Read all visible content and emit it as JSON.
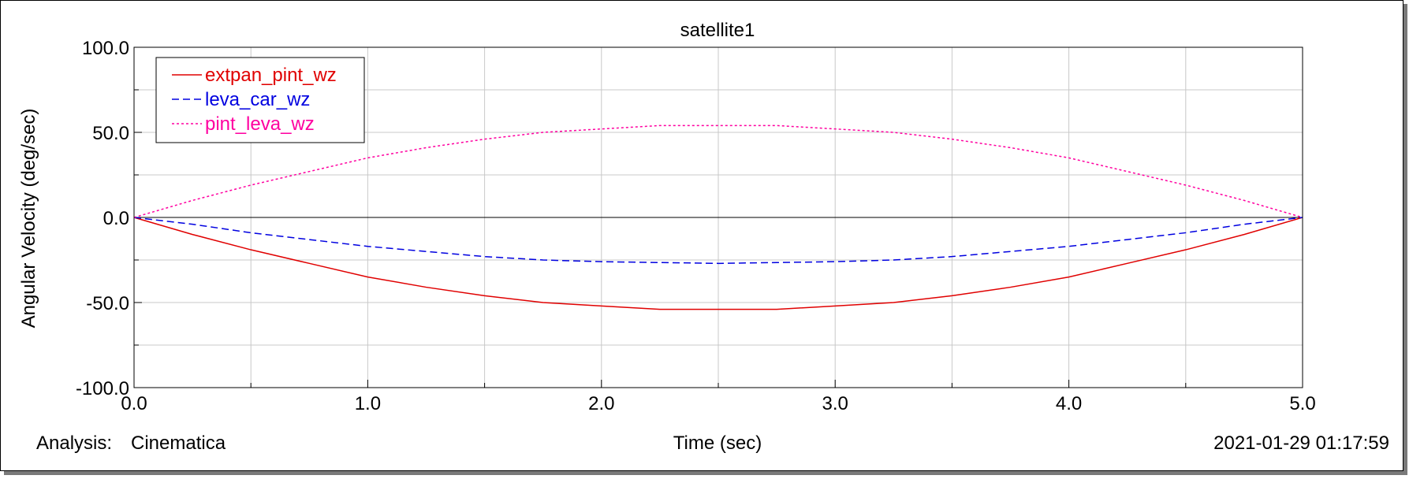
{
  "footer": {
    "analysis_label": "Analysis:",
    "analysis_value": "Cinematica",
    "timestamp": "2021-01-29 01:17:59"
  },
  "chart_data": {
    "type": "line",
    "title": "satellite1",
    "xlabel": "Time (sec)",
    "ylabel": "Angular Velocity (deg/sec)",
    "xlim": [
      0,
      5
    ],
    "ylim": [
      -100,
      100
    ],
    "xticks": [
      0,
      1,
      2,
      3,
      4,
      5
    ],
    "xtick_labels": [
      "0.0",
      "1.0",
      "2.0",
      "3.0",
      "4.0",
      "5.0"
    ],
    "yticks": [
      100,
      50,
      0,
      -50,
      -100
    ],
    "ytick_labels": [
      "100.0",
      "50.0",
      "0.0",
      "-50.0",
      "-100.0"
    ],
    "grid": true,
    "legend_position": "top-left",
    "x": [
      0,
      0.25,
      0.5,
      0.75,
      1.0,
      1.25,
      1.5,
      1.75,
      2.0,
      2.25,
      2.5,
      2.75,
      3.0,
      3.25,
      3.5,
      3.75,
      4.0,
      4.25,
      4.5,
      4.75,
      5.0
    ],
    "series": [
      {
        "name": "extpan_pint_wz",
        "color": "#e00000",
        "style": "solid",
        "values": [
          0,
          -10,
          -19,
          -27,
          -35,
          -41,
          -46,
          -50,
          -52,
          -54,
          -54,
          -54,
          -52,
          -50,
          -46,
          -41,
          -35,
          -27,
          -19,
          -10,
          0
        ]
      },
      {
        "name": "leva_car_wz",
        "color": "#0000e0",
        "style": "dashed",
        "values": [
          0,
          -4,
          -9,
          -13,
          -17,
          -20,
          -23,
          -25,
          -26,
          -26.5,
          -27,
          -26.5,
          -26,
          -25,
          -23,
          -20,
          -17,
          -13,
          -9,
          -4,
          0
        ]
      },
      {
        "name": "pint_leva_wz",
        "color": "#ff00a0",
        "style": "dotted",
        "values": [
          0,
          10,
          19,
          27,
          35,
          41,
          46,
          50,
          52,
          54,
          54,
          54,
          52,
          50,
          46,
          41,
          35,
          27,
          19,
          10,
          0
        ]
      }
    ]
  }
}
